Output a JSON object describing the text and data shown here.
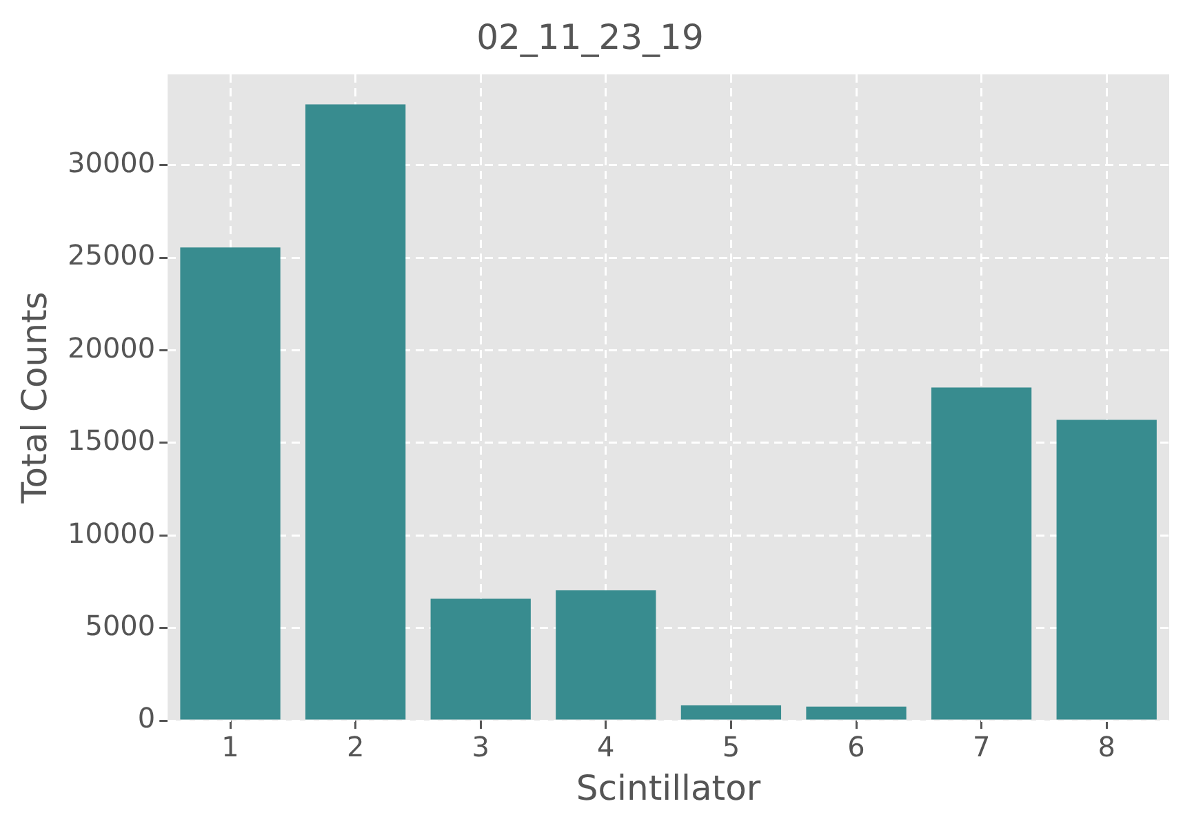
{
  "chart_data": {
    "type": "bar",
    "title": "02_11_23_19",
    "xlabel": "Scintillator",
    "ylabel": "Total Counts",
    "categories": [
      "1",
      "2",
      "3",
      "4",
      "5",
      "6",
      "7",
      "8"
    ],
    "values": [
      25550,
      33280,
      6590,
      7030,
      820,
      750,
      17990,
      16240
    ],
    "color": "#388c8f",
    "ylim": [
      0,
      34900
    ],
    "yticks": [
      0,
      5000,
      10000,
      15000,
      20000,
      25000,
      30000
    ],
    "grid": true
  }
}
